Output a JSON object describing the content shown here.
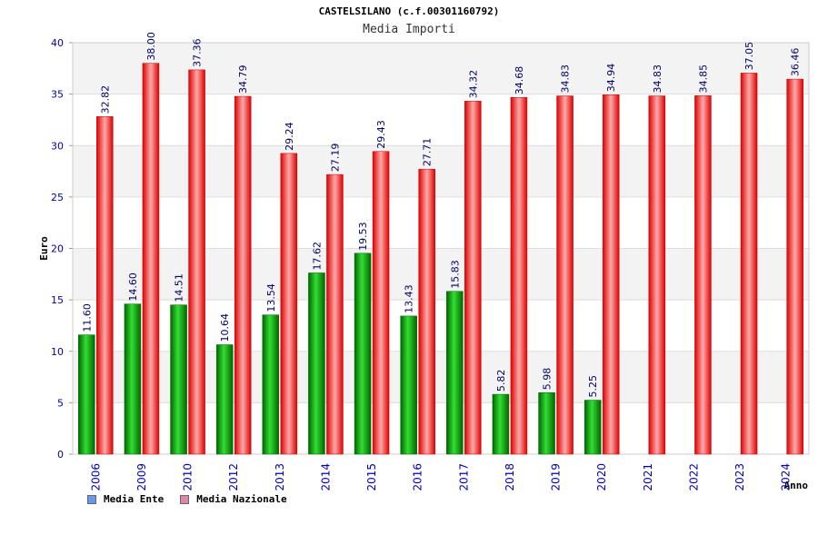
{
  "title": "CASTELSILANO (c.f.00301160792)",
  "subtitle": "Media Importi",
  "chart_data": {
    "type": "bar",
    "xlabel": "Anno",
    "ylabel": "Euro",
    "ylim": [
      0,
      40
    ],
    "yticks": [
      0,
      5,
      10,
      15,
      20,
      25,
      30,
      35,
      40
    ],
    "grid": true,
    "legend_position": "bottom-left",
    "categories": [
      "2006",
      "2009",
      "2010",
      "2012",
      "2013",
      "2014",
      "2015",
      "2016",
      "2017",
      "2018",
      "2019",
      "2020",
      "2021",
      "2022",
      "2023",
      "2024"
    ],
    "series": [
      {
        "name": "Media Ente",
        "color": "#009900",
        "legend_color": "#6699ee",
        "values": [
          11.6,
          14.6,
          14.51,
          10.64,
          13.54,
          17.62,
          19.53,
          13.43,
          15.83,
          5.82,
          5.98,
          5.25,
          null,
          null,
          null,
          null
        ],
        "labels": [
          "11.60",
          "14.60",
          "14.51",
          "10.64",
          "13.54",
          "17.62",
          "19.53",
          "13.43",
          "15.83",
          "5.82",
          "5.98",
          "5.25",
          "",
          "",
          "",
          ""
        ]
      },
      {
        "name": "Media Nazionale",
        "color": "#ee1111",
        "legend_color": "#dd88aa",
        "values": [
          32.82,
          38.0,
          37.36,
          34.79,
          29.24,
          27.19,
          29.43,
          27.71,
          34.32,
          34.68,
          34.83,
          34.94,
          34.83,
          34.85,
          37.05,
          36.46
        ],
        "labels": [
          "32.82",
          "38.00",
          "37.36",
          "34.79",
          "29.24",
          "27.19",
          "29.43",
          "27.71",
          "34.32",
          "34.68",
          "34.83",
          "34.94",
          "34.83",
          "34.85",
          "37.05",
          "36.46"
        ]
      }
    ]
  }
}
